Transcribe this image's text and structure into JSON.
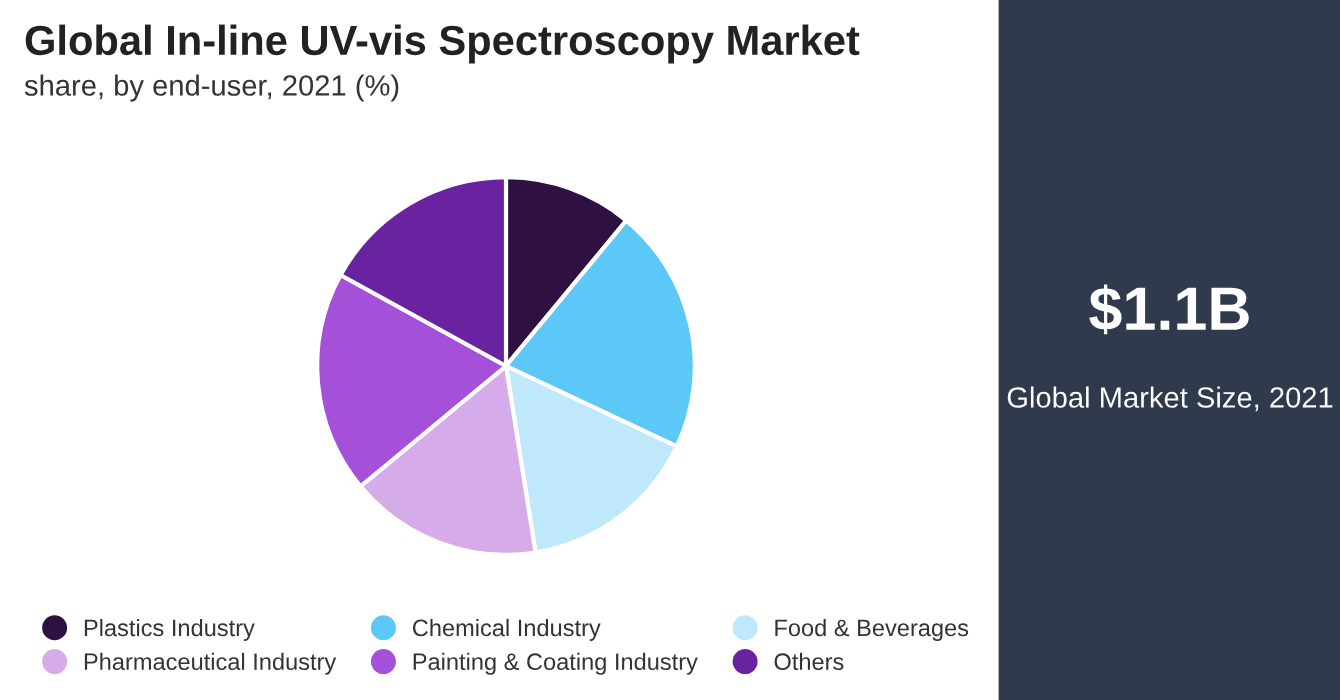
{
  "chart_data": {
    "type": "pie",
    "title": "Global In-line UV-vis Spectroscopy Market",
    "subtitle": "share, by end-user, 2021 (%)",
    "categories": [
      "Plastics Industry",
      "Chemical Industry",
      "Food & Beverages",
      "Pharmaceutical Industry",
      "Painting & Coating Industry",
      "Others"
    ],
    "values": [
      11,
      21,
      15.5,
      16.5,
      19,
      17
    ],
    "colors": [
      "#2e1140",
      "#5bc8f7",
      "#bfe9fb",
      "#d6abea",
      "#a450d8",
      "#6a23a0"
    ],
    "legend": "bottom",
    "annotations": [
      "$1.1B",
      "Global Market Size, 2021"
    ]
  }
}
